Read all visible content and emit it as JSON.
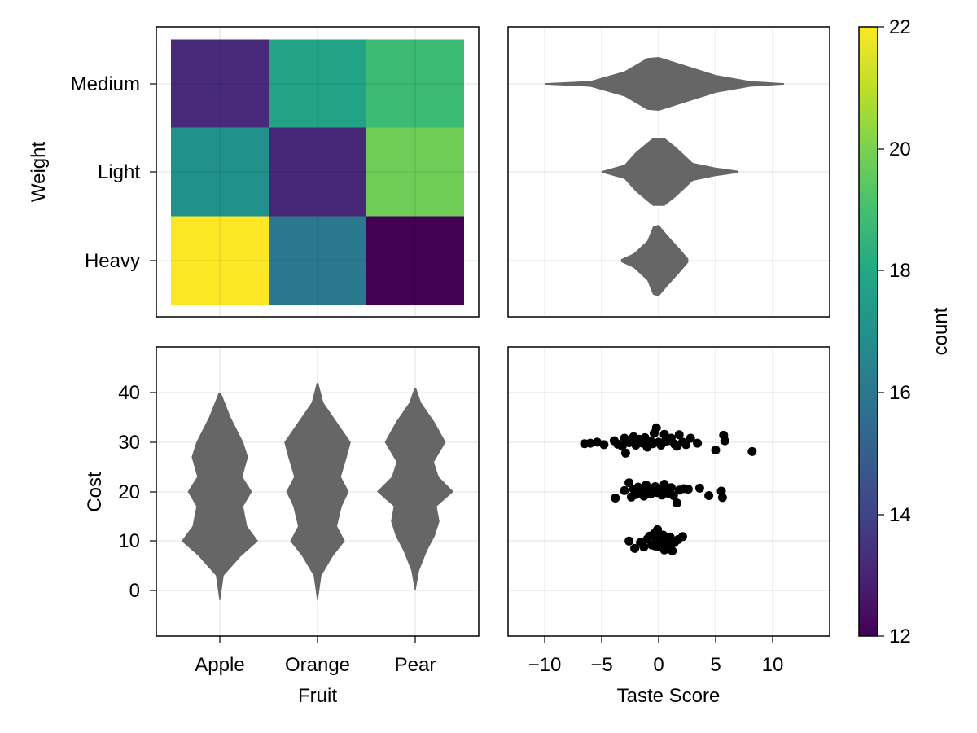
{
  "chart_data": [
    {
      "panel": "top-left",
      "type": "heatmap",
      "xlabel": "",
      "ylabel": "Weight",
      "x_categories": [
        "Apple",
        "Orange",
        "Pear"
      ],
      "y_categories": [
        "Heavy",
        "Light",
        "Medium"
      ],
      "cells": [
        {
          "x": "Apple",
          "y": "Medium",
          "value": 13.2
        },
        {
          "x": "Orange",
          "y": "Medium",
          "value": 17.8
        },
        {
          "x": "Pear",
          "y": "Medium",
          "value": 18.8
        },
        {
          "x": "Apple",
          "y": "Light",
          "value": 17.0
        },
        {
          "x": "Orange",
          "y": "Light",
          "value": 13.1
        },
        {
          "x": "Pear",
          "y": "Light",
          "value": 19.8
        },
        {
          "x": "Apple",
          "y": "Heavy",
          "value": 22.0
        },
        {
          "x": "Orange",
          "y": "Heavy",
          "value": 16.0
        },
        {
          "x": "Pear",
          "y": "Heavy",
          "value": 12.0
        }
      ],
      "grid": true
    },
    {
      "panel": "top-right",
      "type": "violin",
      "orientation": "horizontal",
      "x_ticks": [
        -10,
        -5,
        0,
        5,
        10
      ],
      "xlim": [
        -14,
        14.5
      ],
      "categories": [
        "Heavy",
        "Light",
        "Medium"
      ],
      "violins": [
        {
          "category": "Medium",
          "density": [
            [
              -10,
              0.02
            ],
            [
              -6,
              0.08
            ],
            [
              -3,
              0.35
            ],
            [
              -1,
              0.72
            ],
            [
              0,
              0.75
            ],
            [
              2,
              0.55
            ],
            [
              5,
              0.25
            ],
            [
              8,
              0.08
            ],
            [
              11,
              0.02
            ]
          ]
        },
        {
          "category": "Light",
          "density": [
            [
              -5,
              0.02
            ],
            [
              -3,
              0.2
            ],
            [
              -2,
              0.55
            ],
            [
              -0.5,
              0.95
            ],
            [
              0.5,
              0.95
            ],
            [
              1.5,
              0.7
            ],
            [
              3,
              0.25
            ],
            [
              5,
              0.12
            ],
            [
              7,
              0.03
            ]
          ]
        },
        {
          "category": "Heavy",
          "density": [
            [
              -3.3,
              0.04
            ],
            [
              -2.2,
              0.2
            ],
            [
              -1,
              0.55
            ],
            [
              -0.5,
              0.95
            ],
            [
              0,
              1.0
            ],
            [
              0.8,
              0.7
            ],
            [
              1.8,
              0.35
            ],
            [
              2.6,
              0.05
            ]
          ]
        }
      ],
      "color": "#666666",
      "grid": true
    },
    {
      "panel": "bottom-left",
      "type": "violin",
      "orientation": "vertical",
      "xlabel": "Fruit",
      "ylabel": "Cost",
      "categories": [
        "Apple",
        "Orange",
        "Pear"
      ],
      "y_ticks": [
        0,
        10,
        20,
        30,
        40
      ],
      "ylim": [
        -9,
        48
      ],
      "violins": [
        {
          "category": "Apple",
          "density": [
            [
              -2,
              0.01
            ],
            [
              3,
              0.1
            ],
            [
              7,
              0.55
            ],
            [
              10,
              0.98
            ],
            [
              13,
              0.7
            ],
            [
              17,
              0.6
            ],
            [
              20,
              0.82
            ],
            [
              23,
              0.58
            ],
            [
              27,
              0.72
            ],
            [
              30,
              0.6
            ],
            [
              35,
              0.28
            ],
            [
              40,
              0.03
            ]
          ]
        },
        {
          "category": "Orange",
          "density": [
            [
              -2,
              0.01
            ],
            [
              3,
              0.1
            ],
            [
              7,
              0.4
            ],
            [
              10,
              0.7
            ],
            [
              13,
              0.5
            ],
            [
              17,
              0.62
            ],
            [
              20,
              0.8
            ],
            [
              23,
              0.6
            ],
            [
              27,
              0.75
            ],
            [
              30,
              0.85
            ],
            [
              34,
              0.5
            ],
            [
              38,
              0.15
            ],
            [
              42,
              0.02
            ]
          ]
        },
        {
          "category": "Pear",
          "density": [
            [
              0,
              0.01
            ],
            [
              4,
              0.1
            ],
            [
              8,
              0.3
            ],
            [
              11,
              0.5
            ],
            [
              14,
              0.62
            ],
            [
              17,
              0.55
            ],
            [
              20,
              0.98
            ],
            [
              23,
              0.6
            ],
            [
              26,
              0.48
            ],
            [
              30,
              0.78
            ],
            [
              34,
              0.5
            ],
            [
              38,
              0.15
            ],
            [
              41,
              0.02
            ]
          ]
        }
      ],
      "color": "#666666",
      "grid": true
    },
    {
      "panel": "bottom-right",
      "type": "scatter",
      "xlabel": "Taste Score",
      "x_ticks": [
        -10,
        -5,
        0,
        5,
        10
      ],
      "xlim": [
        -14,
        14.5
      ],
      "ylim": [
        -9,
        48
      ],
      "series": [
        {
          "points": [
            [
              -6.5,
              29.7
            ],
            [
              -6.0,
              29.8
            ],
            [
              -5.4,
              30.0
            ],
            [
              -4.8,
              29.5
            ],
            [
              -3.9,
              30.3
            ],
            [
              -3.6,
              29.6
            ],
            [
              -3.2,
              29.2
            ],
            [
              -2.9,
              27.8
            ],
            [
              -2.6,
              29.9
            ],
            [
              -2.2,
              31.1
            ],
            [
              -2.0,
              29.4
            ],
            [
              -1.7,
              30.6
            ],
            [
              -1.4,
              29.8
            ],
            [
              -1.2,
              30.9
            ],
            [
              -0.9,
              29.4
            ],
            [
              -0.7,
              30.2
            ],
            [
              -0.4,
              31.8
            ],
            [
              -0.2,
              32.9
            ],
            [
              0.0,
              30.0
            ],
            [
              0.2,
              29.4
            ],
            [
              0.5,
              31.6
            ],
            [
              0.8,
              30.3
            ],
            [
              1.1,
              30.8
            ],
            [
              1.4,
              29.6
            ],
            [
              1.8,
              31.5
            ],
            [
              2.1,
              30.0
            ],
            [
              2.4,
              29.5
            ],
            [
              2.8,
              30.8
            ],
            [
              3.4,
              29.8
            ],
            [
              5.0,
              28.4
            ],
            [
              5.7,
              31.4
            ],
            [
              5.8,
              30.3
            ],
            [
              8.2,
              28.1
            ],
            [
              -1.0,
              29.0
            ],
            [
              1.6,
              29.2
            ],
            [
              -3.0,
              30.8
            ],
            [
              0.6,
              30.2
            ],
            [
              -0.5,
              29.7
            ],
            [
              -3.8,
              18.7
            ],
            [
              -3.0,
              20.2
            ],
            [
              -2.6,
              21.8
            ],
            [
              -2.4,
              18.9
            ],
            [
              -2.2,
              20.5
            ],
            [
              -2.0,
              19.4
            ],
            [
              -1.8,
              20.9
            ],
            [
              -1.5,
              20.0
            ],
            [
              -1.3,
              19.1
            ],
            [
              -1.1,
              21.3
            ],
            [
              -0.9,
              20.3
            ],
            [
              -0.7,
              19.5
            ],
            [
              -0.5,
              20.6
            ],
            [
              -0.3,
              21.0
            ],
            [
              -0.1,
              19.8
            ],
            [
              0.1,
              20.4
            ],
            [
              0.3,
              19.3
            ],
            [
              0.5,
              21.5
            ],
            [
              0.7,
              20.1
            ],
            [
              0.9,
              19.6
            ],
            [
              1.1,
              20.8
            ],
            [
              1.3,
              19.2
            ],
            [
              1.6,
              17.7
            ],
            [
              1.8,
              20.3
            ],
            [
              2.2,
              20.6
            ],
            [
              2.6,
              20.5
            ],
            [
              3.6,
              20.7
            ],
            [
              4.4,
              19.2
            ],
            [
              5.5,
              20.1
            ],
            [
              5.6,
              18.8
            ]
          ]
        },
        {
          "points": [
            [
              -2.6,
              10.0
            ],
            [
              -2.1,
              8.5
            ],
            [
              -1.6,
              9.7
            ],
            [
              -1.3,
              8.8
            ],
            [
              -1.0,
              10.4
            ],
            [
              -0.8,
              11.0
            ],
            [
              -0.6,
              9.2
            ],
            [
              -0.4,
              11.5
            ],
            [
              -0.2,
              10.1
            ],
            [
              -0.1,
              12.3
            ],
            [
              0.0,
              8.9
            ],
            [
              0.1,
              10.6
            ],
            [
              0.2,
              9.5
            ],
            [
              0.4,
              11.2
            ],
            [
              0.5,
              8.2
            ],
            [
              0.6,
              10.0
            ],
            [
              0.8,
              9.3
            ],
            [
              1.0,
              10.8
            ],
            [
              1.2,
              8.0
            ],
            [
              1.4,
              9.7
            ],
            [
              1.7,
              10.3
            ],
            [
              2.1,
              10.9
            ],
            [
              -0.3,
              9.0
            ],
            [
              0.3,
              10.4
            ]
          ]
        }
      ],
      "color": "#000000",
      "grid": true
    }
  ],
  "colorbar": {
    "label": "count",
    "ticks": [
      12,
      14,
      16,
      18,
      20,
      22
    ],
    "range": [
      12,
      22
    ],
    "colormap": "viridis"
  },
  "labels": {
    "fruit_ticks": [
      "Apple",
      "Orange",
      "Pear"
    ],
    "weight_ticks": [
      "Medium",
      "Light",
      "Heavy"
    ],
    "cost_ticks": [
      "40",
      "30",
      "20",
      "10",
      "0"
    ],
    "taste_ticks": [
      "−10",
      "−5",
      "0",
      "5",
      "10"
    ],
    "colorbar_ticks": [
      "22",
      "20",
      "18",
      "16",
      "14",
      "12"
    ],
    "weight_axis": "Weight",
    "cost_axis": "Cost",
    "fruit_axis": "Fruit",
    "taste_axis": "Taste Score",
    "colorbar_label": "count"
  },
  "colors": {
    "violin_fill": "#666666",
    "point_fill": "#000000",
    "grid": "#d9d9d9",
    "frame": "#000000"
  }
}
